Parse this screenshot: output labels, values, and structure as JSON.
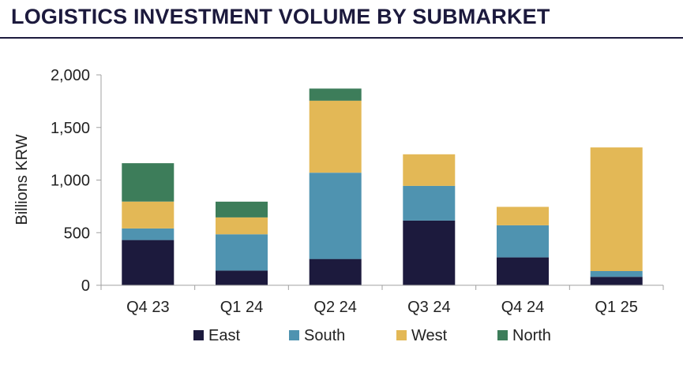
{
  "chart_data": {
    "type": "bar",
    "stacked": true,
    "title": "LOGISTICS INVESTMENT VOLUME BY SUBMARKET",
    "xlabel": "",
    "ylabel": "Billions KRW",
    "ylim": [
      0,
      2000
    ],
    "yticks": [
      0,
      500,
      1000,
      1500,
      2000
    ],
    "ytick_labels": [
      "0",
      "500",
      "1,000",
      "1,500",
      "2,000"
    ],
    "grid": false,
    "legend_position": "bottom",
    "categories": [
      "Q4 23",
      "Q1 24",
      "Q2 24",
      "Q3 24",
      "Q4 24",
      "Q1 25"
    ],
    "series": [
      {
        "name": "East",
        "color": "#1c1a3d",
        "values": [
          430,
          140,
          250,
          615,
          265,
          80
        ]
      },
      {
        "name": "South",
        "color": "#4f93b0",
        "values": [
          110,
          345,
          820,
          330,
          305,
          55
        ]
      },
      {
        "name": "West",
        "color": "#e3b856",
        "values": [
          255,
          160,
          685,
          300,
          175,
          1175
        ]
      },
      {
        "name": "North",
        "color": "#3d7d5a",
        "values": [
          365,
          150,
          115,
          0,
          0,
          0
        ]
      }
    ]
  }
}
